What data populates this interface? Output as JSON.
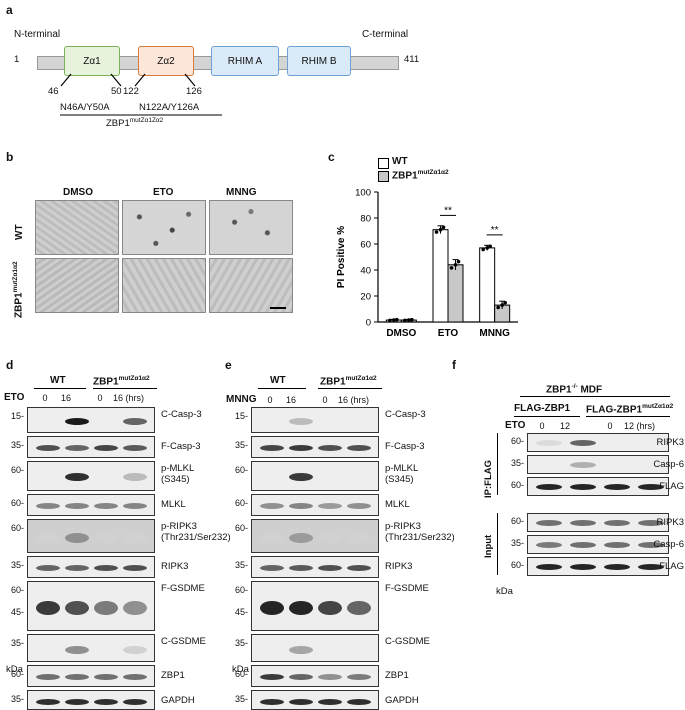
{
  "panel_a": {
    "label": "a",
    "n_terminal": "N-terminal",
    "c_terminal": "C-terminal",
    "start": "1",
    "end": "411",
    "domains": [
      "Zα1",
      "Zα2",
      "RHIM A",
      "RHIM B"
    ],
    "positions": [
      "46",
      "50",
      "122",
      "126"
    ],
    "mut1": "N46A/Y50A",
    "mut2": "N122A/Y126A",
    "construct": "ZBP1",
    "construct_sup": "mutZα1Zα2"
  },
  "panel_b": {
    "label": "b",
    "cols": [
      "DMSO",
      "ETO",
      "MNNG"
    ],
    "row_wt": "WT",
    "row_mut": "ZBP1",
    "row_mut_sup": "mutZα1α2"
  },
  "panel_c": {
    "label": "c",
    "legend_wt": "WT",
    "legend_mut": "ZBP1",
    "legend_mut_sup": "mutZα1α2",
    "sig1": "**",
    "sig2": "**"
  },
  "chart_data": {
    "type": "bar",
    "categories": [
      "DMSO",
      "ETO",
      "MNNG"
    ],
    "series": [
      {
        "name": "WT",
        "values": [
          1.5,
          71,
          57
        ],
        "err": [
          0.5,
          3,
          2
        ]
      },
      {
        "name": "ZBP1 mutZα1α2",
        "values": [
          1.5,
          44,
          13
        ],
        "err": [
          0.5,
          4,
          3
        ]
      }
    ],
    "ylabel": "PI Positive %",
    "ylim": [
      0,
      100
    ],
    "yticks": [
      "0",
      "20",
      "40",
      "60",
      "80",
      "100"
    ],
    "colors": {
      "WT": "#ffffff",
      "ZBP1 mutZα1α2": "#c8c8c8"
    }
  },
  "panel_d": {
    "label": "d",
    "group_wt": "WT",
    "group_mut": "ZBP1",
    "group_mut_sup": "mutZα1α2",
    "treat": "ETO",
    "lanes": [
      "0",
      "16",
      "0",
      "16 (hrs)"
    ],
    "blots": [
      {
        "label": "C-Casp-3",
        "mw": [
          "15-"
        ]
      },
      {
        "label": "F-Casp-3",
        "mw": [
          "35-"
        ]
      },
      {
        "label": "p-MLKL\n(S345)",
        "mw": [
          "60-"
        ]
      },
      {
        "label": "MLKL",
        "mw": [
          "60-"
        ]
      },
      {
        "label": "p-RIPK3\n(Thr231/Ser232)",
        "mw": [
          "60-"
        ]
      },
      {
        "label": "RIPK3",
        "mw": [
          "35-"
        ]
      },
      {
        "label": "F-GSDME",
        "mw": [
          "60-",
          "45-"
        ]
      },
      {
        "label": "C-GSDME",
        "mw": [
          "35-"
        ]
      },
      {
        "label": "ZBP1",
        "mw": [
          "60-"
        ]
      },
      {
        "label": "GAPDH",
        "mw": [
          "35-"
        ]
      }
    ],
    "kda": "kDa"
  },
  "panel_e": {
    "label": "e",
    "group_wt": "WT",
    "group_mut": "ZBP1",
    "group_mut_sup": "mutZα1α2",
    "treat": "MNNG",
    "lanes": [
      "0",
      "16",
      "0",
      "16 (hrs)"
    ],
    "kda": "kDa"
  },
  "panel_f": {
    "label": "f",
    "header": "ZBP1",
    "header_sup": "-/-",
    "header_rest": " MDF",
    "group1": "FLAG-ZBP1",
    "group2": "FLAG-ZBP1",
    "group2_sup": "mutZα1α2",
    "treat": "ETO",
    "lanes": [
      "0",
      "12",
      "0",
      "12 (hrs)"
    ],
    "ip": "IP:FLAG",
    "input": "Input",
    "blots": [
      "RIPK3",
      "Casp-6",
      "FLAG",
      "RIPK3",
      "Casp-6",
      "FLAG"
    ],
    "mw": [
      "60-",
      "35-",
      "60-",
      "60-",
      "35-",
      "60-"
    ],
    "kda": "kDa"
  }
}
